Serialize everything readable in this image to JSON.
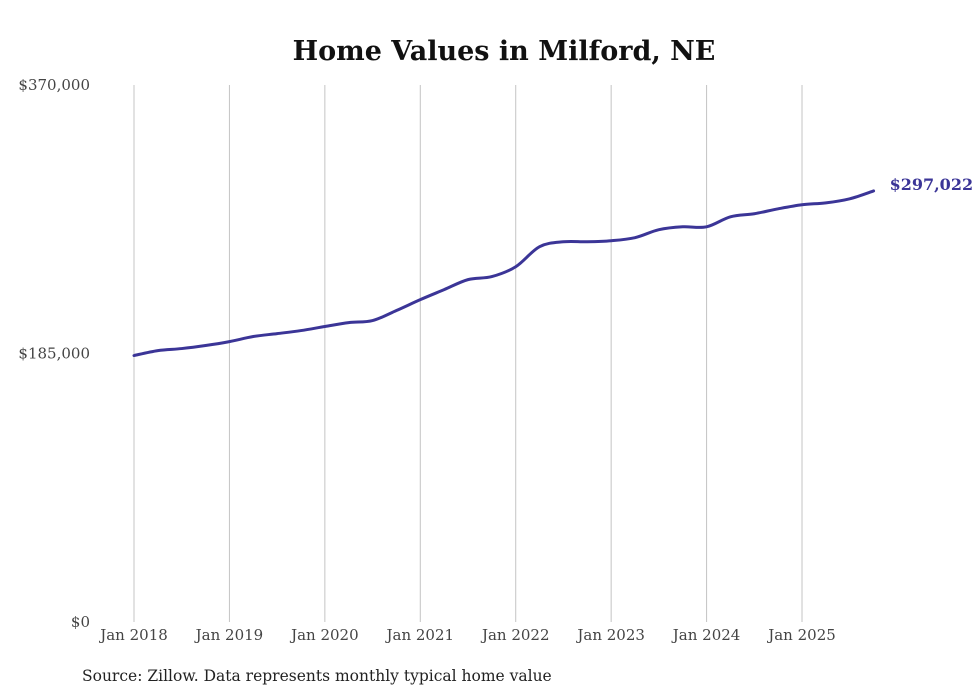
{
  "chart_data": {
    "type": "line",
    "title": "Home Values in Milford, NE",
    "xlabel": "",
    "ylabel": "",
    "ylim": [
      0,
      370000
    ],
    "y_ticks": [
      0,
      185000,
      370000
    ],
    "y_tick_labels": [
      "$0",
      "$185,000",
      "$370,000"
    ],
    "x_ticks": [
      2018,
      2019,
      2020,
      2021,
      2022,
      2023,
      2024,
      2025
    ],
    "x_tick_labels": [
      "Jan 2018",
      "Jan 2019",
      "Jan 2020",
      "Jan 2021",
      "Jan 2022",
      "Jan 2023",
      "Jan 2024",
      "Jan 2025"
    ],
    "xlim": [
      2018,
      2025.75
    ],
    "grid": "vertical",
    "series": [
      {
        "name": "Typical home value",
        "color": "#3b3597",
        "x": [
          2018.0,
          2018.25,
          2018.5,
          2018.75,
          2019.0,
          2019.25,
          2019.5,
          2019.75,
          2020.0,
          2020.25,
          2020.5,
          2020.75,
          2021.0,
          2021.25,
          2021.5,
          2021.75,
          2022.0,
          2022.25,
          2022.5,
          2022.75,
          2023.0,
          2023.25,
          2023.5,
          2023.75,
          2024.0,
          2024.25,
          2024.5,
          2024.75,
          2025.0,
          2025.25,
          2025.5,
          2025.75
        ],
        "values": [
          183600,
          187000,
          188400,
          190500,
          193200,
          196700,
          198700,
          200800,
          203600,
          206300,
          207700,
          214600,
          222100,
          229000,
          235900,
          238000,
          244800,
          258600,
          262000,
          262000,
          262700,
          264800,
          270300,
          272300,
          272300,
          279200,
          281300,
          284700,
          287500,
          288800,
          291600,
          297022
        ]
      }
    ],
    "end_label": "$297,022",
    "source": "Source: Zillow. Data represents monthly typical home value"
  }
}
